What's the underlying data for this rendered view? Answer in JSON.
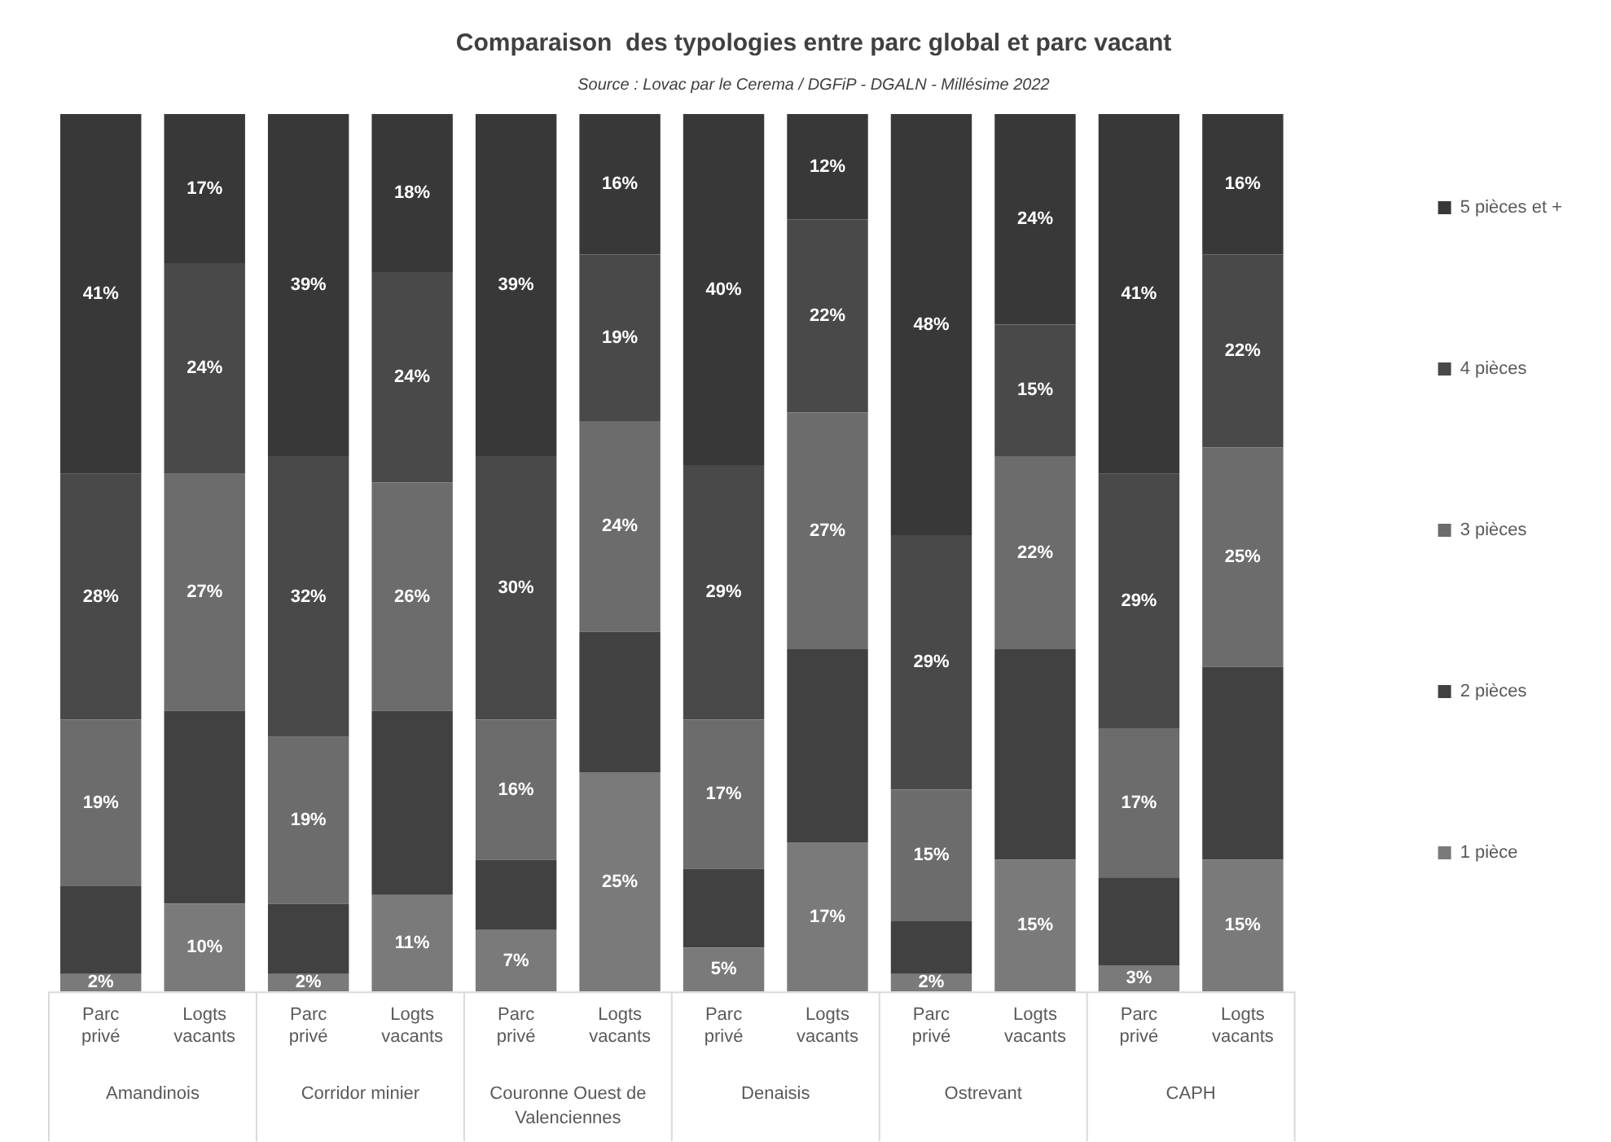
{
  "chart_data": {
    "type": "bar",
    "stacked": true,
    "title": "Comparaison  des typologies entre parc global et parc vacant",
    "subtitle": "Source : Lovac par le Cerema / DGFiP - DGALN - Millésime 2022",
    "categories": [
      "Parc privé",
      "Logts vacants",
      "Parc privé",
      "Logts vacants",
      "Parc privé",
      "Logts vacants",
      "Parc privé",
      "Logts vacants",
      "Parc privé",
      "Logts vacants",
      "Parc privé",
      "Logts vacants"
    ],
    "annotations": [
      "Amandinois",
      "Corridor minier",
      "Couronne Ouest de Valenciennes",
      "Denaisis",
      "Ostrevant",
      "CAPH"
    ],
    "series": [
      {
        "name": "1 pièce",
        "color": "#7a7a7a",
        "values": [
          2,
          10,
          2,
          11,
          7,
          25,
          5,
          17,
          2,
          15,
          3,
          15
        ],
        "value_labels": [
          "2%",
          "10%",
          "2%",
          "11%",
          "7%",
          "25%",
          "5%",
          "17%",
          "2%",
          "15%",
          "3%",
          "15%"
        ]
      },
      {
        "name": "2 pièces",
        "color": "#414141",
        "values": [
          10,
          22,
          8,
          21,
          8,
          16,
          9,
          22,
          6,
          24,
          10,
          22
        ],
        "value_labels": [
          null,
          null,
          null,
          null,
          null,
          null,
          null,
          null,
          null,
          null,
          null,
          null
        ]
      },
      {
        "name": "3 pièces",
        "color": "#6c6c6c",
        "values": [
          19,
          27,
          19,
          26,
          16,
          24,
          17,
          27,
          15,
          22,
          17,
          25
        ],
        "value_labels": [
          "19%",
          "27%",
          "19%",
          "26%",
          "16%",
          "24%",
          "17%",
          "27%",
          "15%",
          "22%",
          "17%",
          "25%"
        ]
      },
      {
        "name": "4 pièces",
        "color": "#494949",
        "values": [
          28,
          24,
          32,
          24,
          30,
          19,
          29,
          22,
          29,
          15,
          29,
          22
        ],
        "value_labels": [
          "28%",
          "24%",
          "32%",
          "24%",
          "30%",
          "19%",
          "29%",
          "22%",
          "29%",
          "15%",
          "29%",
          "22%"
        ]
      },
      {
        "name": "5 pièces et +",
        "color": "#383838",
        "values": [
          41,
          17,
          39,
          18,
          39,
          16,
          40,
          12,
          48,
          24,
          41,
          16
        ],
        "value_labels": [
          "41%",
          "17%",
          "39%",
          "18%",
          "39%",
          "16%",
          "40%",
          "12%",
          "48%",
          "24%",
          "41%",
          "16%"
        ]
      }
    ],
    "legend": "right",
    "grid": false
  }
}
